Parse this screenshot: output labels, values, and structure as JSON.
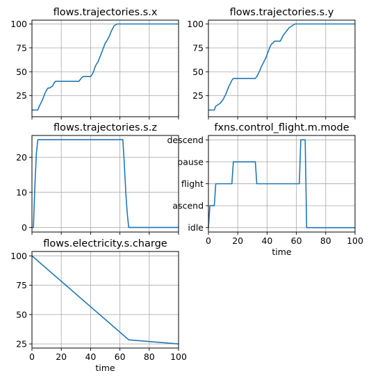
{
  "colors": {
    "series": "#1f77b4",
    "grid": "#b0b0b0"
  },
  "chart_data": [
    {
      "type": "line",
      "title": "flows.trajectories.s.x",
      "xlim": [
        0,
        100
      ],
      "ylim": [
        3,
        104
      ],
      "xticks": [
        0,
        20,
        40,
        60,
        80,
        100
      ],
      "show_xticklabels": false,
      "yticks": [
        25,
        50,
        75,
        100
      ],
      "xlabel": "",
      "grid": true,
      "series": [
        {
          "x": [
            0,
            4,
            5,
            6,
            7,
            8,
            9,
            10,
            11,
            12,
            13,
            14,
            15,
            16,
            17,
            32,
            33,
            34,
            35,
            36,
            40,
            41,
            42,
            43,
            44,
            45,
            46,
            47,
            48,
            49,
            50,
            51,
            52,
            53,
            54,
            55,
            56,
            57,
            58,
            59,
            60,
            61,
            62,
            100
          ],
          "y": [
            10,
            10,
            14,
            17,
            20,
            24,
            28,
            31,
            33,
            33,
            34,
            35,
            38,
            40,
            40,
            40,
            42,
            44,
            45,
            45,
            45,
            47,
            50,
            55,
            58,
            60,
            64,
            68,
            72,
            76,
            80,
            82,
            85,
            88,
            92,
            95,
            98,
            99,
            100,
            100,
            100,
            100,
            100,
            100
          ]
        }
      ]
    },
    {
      "type": "line",
      "title": "flows.trajectories.s.y",
      "xlim": [
        0,
        100
      ],
      "ylim": [
        3,
        104
      ],
      "xticks": [
        0,
        20,
        40,
        60,
        80,
        100
      ],
      "show_xticklabels": false,
      "yticks": [
        25,
        50,
        75,
        100
      ],
      "xlabel": "",
      "grid": true,
      "series": [
        {
          "x": [
            0,
            4,
            5,
            6,
            7,
            8,
            9,
            10,
            11,
            12,
            13,
            14,
            15,
            16,
            17,
            32,
            33,
            34,
            35,
            36,
            37,
            38,
            39,
            40,
            41,
            42,
            43,
            44,
            45,
            46,
            47,
            48,
            49,
            50,
            51,
            52,
            53,
            54,
            55,
            56,
            57,
            58,
            59,
            60,
            61,
            62,
            100
          ],
          "y": [
            10,
            10,
            14,
            15,
            16,
            17,
            19,
            21,
            24,
            27,
            31,
            35,
            38,
            41,
            43,
            43,
            45,
            48,
            51,
            55,
            58,
            61,
            64,
            68,
            72,
            76,
            79,
            80,
            82,
            82,
            82,
            82,
            82,
            85,
            88,
            90,
            92,
            94,
            96,
            97,
            98,
            99,
            100,
            100,
            100,
            100,
            100
          ]
        }
      ]
    },
    {
      "type": "line",
      "title": "flows.trajectories.s.z",
      "xlim": [
        0,
        100
      ],
      "ylim": [
        -1.3,
        26.2
      ],
      "xticks": [
        0,
        20,
        40,
        60,
        80,
        100
      ],
      "show_xticklabels": false,
      "yticks": [
        0,
        10,
        20
      ],
      "xlabel": "",
      "grid": true,
      "series": [
        {
          "x": [
            0,
            1,
            2,
            3,
            4,
            62,
            63,
            64,
            65,
            66,
            100
          ],
          "y": [
            0,
            0,
            12,
            21,
            25,
            25,
            18,
            10,
            4,
            0,
            0
          ]
        }
      ]
    },
    {
      "type": "line",
      "title": "fxns.control_flight.m.mode",
      "xlim": [
        0,
        100
      ],
      "ylim": [
        -0.2,
        4.2
      ],
      "xticks": [
        0,
        20,
        40,
        60,
        80,
        100
      ],
      "show_xticklabels": true,
      "yticks": [
        0,
        1,
        2,
        3,
        4
      ],
      "ytick_labels": [
        "idle",
        "ascend",
        "flight",
        "pause",
        "descend"
      ],
      "xlabel": "time",
      "grid": true,
      "series": [
        {
          "x": [
            0,
            1,
            4,
            5,
            16,
            17,
            32,
            33,
            62,
            63,
            66,
            67,
            100
          ],
          "y": [
            0,
            1,
            1,
            2,
            2,
            3,
            3,
            2,
            2,
            4,
            4,
            0,
            0
          ]
        }
      ]
    },
    {
      "type": "line",
      "title": "flows.electricity.s.charge",
      "xlim": [
        0,
        100
      ],
      "ylim": [
        21.5,
        103.7
      ],
      "xticks": [
        0,
        20,
        40,
        60,
        80,
        100
      ],
      "show_xticklabels": true,
      "yticks": [
        25,
        50,
        75,
        100
      ],
      "xlabel": "time",
      "grid": true,
      "series": [
        {
          "x": [
            0,
            66,
            100
          ],
          "y": [
            100,
            28.5,
            25
          ]
        }
      ]
    }
  ]
}
